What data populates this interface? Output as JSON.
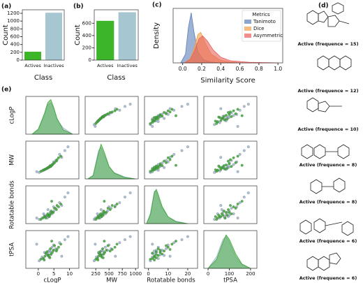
{
  "chart_data": [
    {
      "type": "bar",
      "panel_label": "(a)",
      "xlabel": "Class",
      "ylabel": "Count",
      "categories": [
        "Actives",
        "Inactives"
      ],
      "values": [
        215,
        1215
      ],
      "colors": [
        "#3cb528",
        "#a6c7d1"
      ],
      "ylim": [
        0,
        1290
      ],
      "yticks": [
        0,
        200,
        400,
        600,
        800,
        1000,
        1200
      ]
    },
    {
      "type": "bar",
      "panel_label": "(b)",
      "xlabel": "Class",
      "ylabel": "Count",
      "categories": [
        "Actives",
        "Inactives"
      ],
      "values": [
        640,
        780
      ],
      "colors": [
        "#3cb528",
        "#a6c7d1"
      ],
      "ylim": [
        0,
        820
      ],
      "yticks": [
        0,
        200,
        400,
        600
      ]
    },
    {
      "type": "density",
      "panel_label": "(c)",
      "xlabel": "Similarity Score",
      "ylabel": "Density",
      "legend_title": "Metrics",
      "legend": "upper right",
      "xlim": [
        -0.1,
        1.05
      ],
      "xticks": [
        {
          "value": 0,
          "label": "0.0"
        },
        0.2,
        0.4,
        0.6,
        0.8,
        {
          "value": 1,
          "label": "1.0"
        }
      ],
      "ylim": [
        0,
        12.5
      ],
      "series": [
        {
          "name": "Tanimoto",
          "color": "#5b7fb8",
          "x": [
            -0.02,
            0.03,
            0.06,
            0.09,
            0.12,
            0.16,
            0.22,
            0.3,
            0.4
          ],
          "values": [
            0,
            2,
            8,
            11.5,
            7,
            2.5,
            0.7,
            0.2,
            0
          ]
        },
        {
          "name": "Dice",
          "color": "#f0a04a",
          "x": [
            0.02,
            0.08,
            0.12,
            0.16,
            0.19,
            0.24,
            0.3,
            0.4,
            0.5,
            0.6
          ],
          "values": [
            0,
            1,
            3.5,
            6.5,
            7,
            4.5,
            2,
            0.6,
            0.2,
            0
          ]
        },
        {
          "name": "Asymmetric",
          "color": "#e8605a",
          "x": [
            0.02,
            0.08,
            0.13,
            0.17,
            0.21,
            0.26,
            0.32,
            0.4,
            0.5,
            0.7,
            0.9,
            1.0
          ],
          "values": [
            0,
            0.8,
            3,
            5.5,
            6.2,
            5,
            3,
            1.3,
            0.5,
            0.15,
            0.05,
            0
          ]
        }
      ]
    },
    {
      "type": "pairplot",
      "panel_label": "(e)",
      "variables": [
        {
          "label": "cLogP",
          "xlim": [
            -4,
            13
          ],
          "xticks": [
            0,
            5,
            10
          ],
          "density_ylim": [
            0,
            0.36
          ]
        },
        {
          "label": "MW",
          "xlim": [
            50,
            1050
          ],
          "xticks": [
            250,
            500,
            750,
            1000
          ],
          "density_ylim": [
            0,
            0.006
          ]
        },
        {
          "label": "Rotatable bonds",
          "xlim": [
            -2,
            25
          ],
          "xticks": [
            0,
            10,
            20
          ],
          "density_ylim": [
            0,
            0.22
          ]
        },
        {
          "label": "tPSA",
          "xlim": [
            -20,
            230
          ],
          "xticks": [
            0,
            100,
            200
          ],
          "density_ylim": [
            0,
            0.013
          ]
        }
      ],
      "series": [
        {
          "color": "#9db4cb",
          "values": [
            [
              2.5,
              320,
              3,
              75
            ],
            [
              3.8,
              400,
              6,
              90
            ],
            [
              1.2,
              260,
              2,
              55
            ],
            [
              5.0,
              470,
              7,
              100
            ],
            [
              6.8,
              700,
              13,
              150
            ],
            [
              0.3,
              220,
              1,
              30
            ],
            [
              4.4,
              430,
              5,
              120
            ],
            [
              3.1,
              350,
              8,
              65
            ],
            [
              8.5,
              800,
              17,
              170
            ],
            [
              2.0,
              300,
              4,
              85
            ],
            [
              5.6,
              540,
              9,
              110
            ],
            [
              -0.5,
              240,
              2,
              140
            ],
            [
              4.0,
              380,
              6,
              70
            ],
            [
              3.4,
              360,
              3,
              95
            ],
            [
              7.5,
              620,
              11,
              60
            ],
            [
              1.7,
              280,
              5,
              45
            ],
            [
              9.5,
              900,
              20,
              190
            ],
            [
              2.9,
              330,
              2,
              80
            ],
            [
              4.9,
              500,
              10,
              135
            ],
            [
              3.6,
              370,
              4,
              100
            ]
          ],
          "kde": [
            {
              "x": [
                -2,
                0,
                2,
                3,
                4,
                5,
                6,
                8,
                11
              ],
              "values": [
                0,
                0.04,
                0.18,
                0.28,
                0.3,
                0.24,
                0.14,
                0.06,
                0
              ]
            },
            {
              "x": [
                100,
                200,
                300,
                350,
                400,
                500,
                600,
                800,
                1000
              ],
              "values": [
                0,
                0.0006,
                0.0045,
                0.005,
                0.004,
                0.0019,
                0.001,
                0.0003,
                0
              ]
            },
            {
              "x": [
                -1,
                1,
                3,
                4,
                5,
                7,
                10,
                14,
                20
              ],
              "values": [
                0,
                0.06,
                0.19,
                0.19,
                0.15,
                0.09,
                0.04,
                0.015,
                0
              ]
            },
            {
              "x": [
                0,
                40,
                70,
                85,
                100,
                130,
                160,
                200
              ],
              "values": [
                0,
                0.004,
                0.01,
                0.011,
                0.009,
                0.004,
                0.0012,
                0
              ]
            }
          ]
        },
        {
          "color": "#3aa832",
          "values": [
            [
              3.2,
              350,
              4,
              70
            ],
            [
              4.5,
              420,
              6,
              85
            ],
            [
              2.1,
              300,
              3,
              60
            ],
            [
              5.8,
              520,
              8,
              95
            ],
            [
              3.9,
              380,
              5,
              110
            ],
            [
              1.5,
              280,
              2,
              45
            ],
            [
              6.5,
              610,
              10,
              120
            ],
            [
              4.1,
              400,
              7,
              75
            ],
            [
              2.8,
              330,
              4,
              90
            ],
            [
              3.5,
              360,
              3,
              55
            ],
            [
              7.2,
              650,
              12,
              140
            ],
            [
              0.8,
              250,
              1,
              40
            ],
            [
              4.8,
              450,
              6,
              100
            ],
            [
              3.0,
              340,
              5,
              65
            ],
            [
              5.2,
              480,
              9,
              130
            ],
            [
              2.4,
              310,
              2,
              80
            ],
            [
              6.0,
              560,
              11,
              105
            ],
            [
              3.7,
              390,
              4,
              50
            ],
            [
              4.3,
              410,
              14,
              160
            ],
            [
              1.9,
              290,
              3,
              35
            ]
          ],
          "kde": [
            {
              "x": [
                -2,
                0,
                2,
                3,
                4,
                5,
                6,
                8,
                11
              ],
              "values": [
                0,
                0.05,
                0.2,
                0.3,
                0.33,
                0.25,
                0.15,
                0.04,
                0
              ]
            },
            {
              "x": [
                100,
                200,
                300,
                350,
                400,
                500,
                600,
                800,
                1000
              ],
              "values": [
                0,
                0.0005,
                0.004,
                0.0055,
                0.0045,
                0.002,
                0.0009,
                0.0002,
                0
              ]
            },
            {
              "x": [
                -1,
                1,
                3,
                4,
                5,
                7,
                10,
                14,
                20
              ],
              "values": [
                0,
                0.05,
                0.18,
                0.2,
                0.17,
                0.1,
                0.04,
                0.01,
                0
              ]
            },
            {
              "x": [
                0,
                40,
                70,
                85,
                100,
                130,
                160,
                200
              ],
              "values": [
                0,
                0.003,
                0.009,
                0.0115,
                0.01,
                0.005,
                0.0015,
                0
              ]
            }
          ]
        }
      ]
    }
  ],
  "molecules": {
    "panel_label": "(d)",
    "items": [
      {
        "label": "Active (frequence = 15)"
      },
      {
        "label": "Active (frequence = 12)"
      },
      {
        "label": "Active (frequence = 10)"
      },
      {
        "label": "Active (frequence = 8)"
      },
      {
        "label": "Active (frequence = 8)"
      },
      {
        "label": "Active (frequence = 6)"
      },
      {
        "label": "Active (frequence = 6)"
      }
    ]
  }
}
